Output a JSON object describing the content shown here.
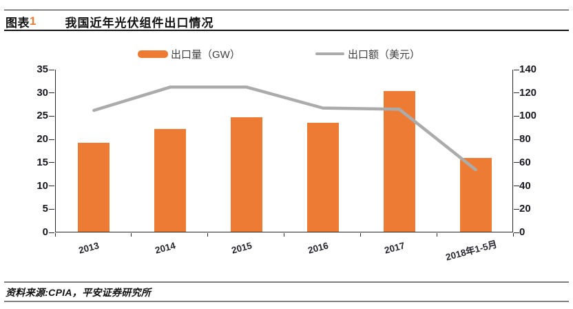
{
  "header": {
    "figure_prefix": "图表",
    "figure_number": "1",
    "title": "我国近年光伏组件出口情况"
  },
  "legend": [
    {
      "label": "出口量（GW）",
      "swatch": "bar-swatch",
      "color": "#ED7B33"
    },
    {
      "label": "出口额（美元）",
      "swatch": "line-swatch",
      "color": "#ABABAB"
    }
  ],
  "chart_data": {
    "type": "bar",
    "title": "我国近年光伏组件出口情况",
    "categories": [
      "2013",
      "2014",
      "2015",
      "2016",
      "2017",
      "2018年1-5月"
    ],
    "series": [
      {
        "name": "出口量（GW）",
        "type": "bar",
        "axis": "left",
        "color": "#ED7B33",
        "values": [
          19.2,
          22.1,
          24.6,
          23.5,
          30.2,
          15.8
        ]
      },
      {
        "name": "出口额（美元）",
        "type": "line",
        "axis": "right",
        "color": "#ABABAB",
        "values": [
          105,
          125,
          125,
          107,
          106,
          54
        ]
      }
    ],
    "left_axis": {
      "min": 0,
      "max": 35,
      "step": 5,
      "ticks": [
        0,
        5,
        10,
        15,
        20,
        25,
        30,
        35
      ]
    },
    "right_axis": {
      "min": 0,
      "max": 140,
      "step": 20,
      "ticks": [
        0,
        20,
        40,
        60,
        80,
        100,
        120,
        140
      ]
    },
    "legend_position": "top",
    "grid": false
  },
  "footer": {
    "source": "资料来源:CPIA，平安证券研究所"
  }
}
